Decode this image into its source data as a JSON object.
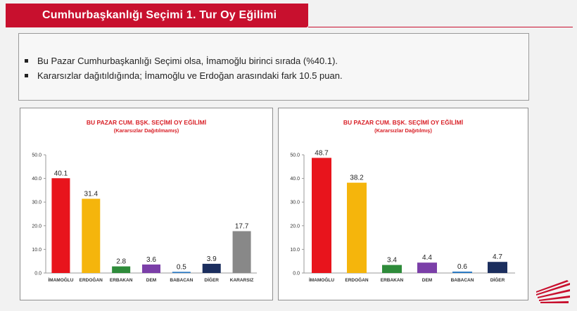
{
  "header": {
    "title": "Cumhurbaşkanlığı Seçimi 1. Tur Oy Eğilimi"
  },
  "summary": {
    "bullets": [
      "Bu Pazar Cumhurbaşkanlığı Seçimi olsa, İmamoğlu birinci sırada (%40.1).",
      "Kararsızlar dağıtıldığında; İmamoğlu ve Erdoğan arasındaki fark 10.5 puan."
    ]
  },
  "chart_data": [
    {
      "type": "bar",
      "title": "BU PAZAR CUM. BŞK. SEÇİMİ OY EĞİLİMİ",
      "subtitle": "(Kararsızlar Dağıtılmamış)",
      "categories": [
        "İMAMOĞLU",
        "ERDOĞAN",
        "ERBAKAN",
        "DEM",
        "BABACAN",
        "DİĞER",
        "KARARSIZ"
      ],
      "values": [
        40.1,
        31.4,
        2.8,
        3.6,
        0.5,
        3.9,
        17.7
      ],
      "value_labels": [
        "40.1",
        "31.4",
        "2.8",
        "3.6",
        "0.5",
        "3.9",
        "17.7"
      ],
      "colors": [
        "#e8141c",
        "#f5b50c",
        "#2e8b3a",
        "#7b3fa8",
        "#2c7bc4",
        "#1b2e5e",
        "#888888"
      ],
      "yticks": [
        "0.0",
        "10.0",
        "20.0",
        "30.0",
        "40.0",
        "50.0"
      ],
      "ylim": [
        0,
        50
      ],
      "grid": false
    },
    {
      "type": "bar",
      "title": "BU PAZAR CUM. BŞK. SEÇİMİ OY EĞİLİMİ",
      "subtitle": "(Kararsızlar Dağıtılmış)",
      "categories": [
        "İMAMOĞLU",
        "ERDOĞAN",
        "ERBAKAN",
        "DEM",
        "BABACAN",
        "DİĞER"
      ],
      "values": [
        48.7,
        38.2,
        3.4,
        4.4,
        0.6,
        4.7
      ],
      "value_labels": [
        "48.7",
        "38.2",
        "3.4",
        "4.4",
        "0.6",
        "4.7"
      ],
      "colors": [
        "#e8141c",
        "#f5b50c",
        "#2e8b3a",
        "#7b3fa8",
        "#2c7bc4",
        "#1b2e5e"
      ],
      "yticks": [
        "0.0",
        "10.0",
        "20.0",
        "30.0",
        "40.0",
        "50.0"
      ],
      "ylim": [
        0,
        50
      ],
      "grid": false
    }
  ],
  "logo": {
    "icon": "chp-logo-icon",
    "color": "#c8102e"
  }
}
